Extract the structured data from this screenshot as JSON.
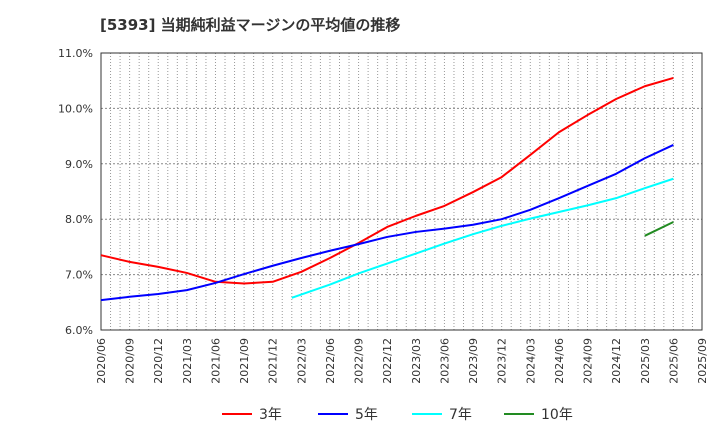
{
  "chart_data": {
    "type": "line",
    "title": "[5393]  当期純利益マージンの平均値の推移",
    "xlabel": "",
    "ylabel": "",
    "ylim": [
      6.0,
      11.0
    ],
    "y_ticks": [
      "6.0%",
      "7.0%",
      "8.0%",
      "9.0%",
      "10.0%",
      "11.0%"
    ],
    "x_ticks": [
      "2020/06",
      "2020/09",
      "2020/12",
      "2021/03",
      "2021/06",
      "2021/09",
      "2021/12",
      "2022/03",
      "2022/06",
      "2022/09",
      "2022/12",
      "2023/03",
      "2023/06",
      "2023/09",
      "2023/12",
      "2024/03",
      "2024/06",
      "2024/09",
      "2024/12",
      "2025/03",
      "2025/06",
      "2025/09"
    ],
    "grid": true,
    "legend_position": "bottom",
    "series": [
      {
        "name": "3年",
        "color": "#ff0000",
        "x": [
          "2020/06",
          "2020/09",
          "2020/12",
          "2021/03",
          "2021/06",
          "2021/09",
          "2021/12",
          "2022/03",
          "2022/06",
          "2022/09",
          "2022/12",
          "2023/03",
          "2023/06",
          "2023/09",
          "2023/12",
          "2024/03",
          "2024/06",
          "2024/09",
          "2024/12",
          "2025/03",
          "2025/06"
        ],
        "values": [
          7.35,
          7.23,
          7.14,
          7.03,
          6.87,
          6.84,
          6.87,
          7.05,
          7.3,
          7.57,
          7.86,
          8.06,
          8.24,
          8.49,
          8.76,
          9.16,
          9.57,
          9.88,
          10.17,
          10.4,
          10.55
        ]
      },
      {
        "name": "5年",
        "color": "#0000ff",
        "x": [
          "2020/06",
          "2020/09",
          "2020/12",
          "2021/03",
          "2021/06",
          "2021/09",
          "2021/12",
          "2022/03",
          "2022/06",
          "2022/09",
          "2022/12",
          "2023/03",
          "2023/06",
          "2023/09",
          "2023/12",
          "2024/03",
          "2024/06",
          "2024/09",
          "2024/12",
          "2025/03",
          "2025/06"
        ],
        "values": [
          6.54,
          6.6,
          6.65,
          6.72,
          6.85,
          7.01,
          7.16,
          7.3,
          7.43,
          7.55,
          7.68,
          7.77,
          7.83,
          7.9,
          8.0,
          8.17,
          8.38,
          8.6,
          8.82,
          9.1,
          9.34
        ]
      },
      {
        "name": "7年",
        "color": "#00ffff",
        "x": [
          "2022/02",
          "2022/06",
          "2022/09",
          "2022/12",
          "2023/03",
          "2023/06",
          "2023/09",
          "2023/12",
          "2024/03",
          "2024/06",
          "2024/09",
          "2024/12",
          "2025/03",
          "2025/06"
        ],
        "values": [
          6.58,
          6.82,
          7.02,
          7.2,
          7.38,
          7.56,
          7.73,
          7.88,
          8.01,
          8.13,
          8.25,
          8.38,
          8.56,
          8.73
        ]
      },
      {
        "name": "10年",
        "color": "#228b22",
        "x": [
          "2025/03",
          "2025/06"
        ],
        "values": [
          7.7,
          7.95
        ]
      }
    ]
  }
}
